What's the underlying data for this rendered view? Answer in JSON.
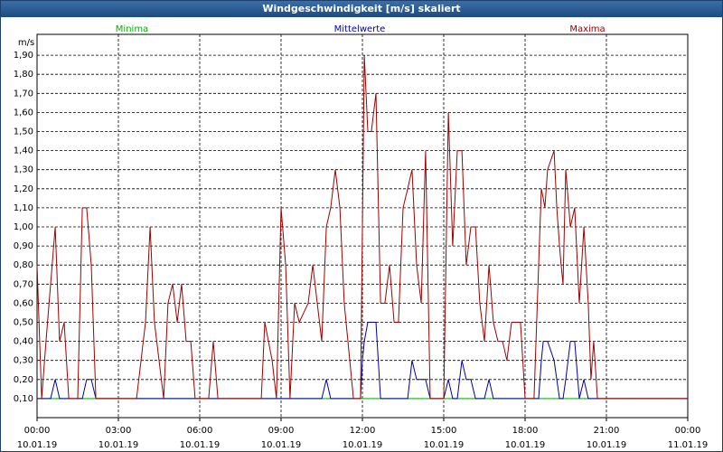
{
  "chart_data": {
    "type": "line",
    "title": "Windgeschwindigkeit [m/s] skaliert",
    "y_label": "m/s",
    "legend": "top",
    "grid": true,
    "ylim": [
      0,
      2
    ],
    "yticks": [
      {
        "value": 0.1,
        "label": "0,10"
      },
      {
        "value": 0.2,
        "label": "0,20"
      },
      {
        "value": 0.3,
        "label": "0,30"
      },
      {
        "value": 0.4,
        "label": "0,40"
      },
      {
        "value": 0.5,
        "label": "0,50"
      },
      {
        "value": 0.6,
        "label": "0,60"
      },
      {
        "value": 0.7,
        "label": "0,70"
      },
      {
        "value": 0.8,
        "label": "0,80"
      },
      {
        "value": 0.9,
        "label": "0,90"
      },
      {
        "value": 1.0,
        "label": "1,00"
      },
      {
        "value": 1.1,
        "label": "1,10"
      },
      {
        "value": 1.2,
        "label": "1,20"
      },
      {
        "value": 1.3,
        "label": "1,30"
      },
      {
        "value": 1.4,
        "label": "1,40"
      },
      {
        "value": 1.5,
        "label": "1,50"
      },
      {
        "value": 1.6,
        "label": "1,60"
      },
      {
        "value": 1.7,
        "label": "1,70"
      },
      {
        "value": 1.8,
        "label": "1,80"
      },
      {
        "value": 1.9,
        "label": "1,90"
      }
    ],
    "xlim": [
      0,
      24
    ],
    "xticks": [
      {
        "value": 0,
        "label": "00:00",
        "date": "10.01.19"
      },
      {
        "value": 3,
        "label": "03:00",
        "date": "10.01.19"
      },
      {
        "value": 6,
        "label": "06:00",
        "date": "10.01.19"
      },
      {
        "value": 9,
        "label": "09:00",
        "date": "10.01.19"
      },
      {
        "value": 12,
        "label": "12:00",
        "date": "10.01.19"
      },
      {
        "value": 15,
        "label": "15:00",
        "date": "10.01.19"
      },
      {
        "value": 18,
        "label": "18:00",
        "date": "10.01.19"
      },
      {
        "value": 21,
        "label": "21:00",
        "date": "10.01.19"
      },
      {
        "value": 24,
        "label": "00:00",
        "date": "11.01.19"
      }
    ],
    "x": [
      0,
      0.17,
      0.33,
      0.5,
      0.67,
      0.83,
      1,
      1.17,
      1.5,
      1.67,
      1.83,
      2,
      2.17,
      3.67,
      4,
      4.17,
      4.33,
      4.67,
      4.83,
      5,
      5.17,
      5.33,
      5.5,
      5.67,
      5.83,
      6.33,
      6.5,
      6.67,
      8.27,
      8.4,
      8.67,
      8.83,
      9,
      9.17,
      9.33,
      9.5,
      9.67,
      10,
      10.17,
      10.5,
      10.67,
      10.83,
      11,
      11.17,
      11.33,
      11.67,
      11.93,
      12,
      12.07,
      12.2,
      12.33,
      12.5,
      12.67,
      12.83,
      13,
      13.17,
      13.33,
      13.5,
      13.67,
      13.83,
      14,
      14.17,
      14.33,
      14.5,
      15,
      15.17,
      15.33,
      15.5,
      15.67,
      15.83,
      16,
      16.17,
      16.33,
      16.5,
      16.67,
      16.83,
      17,
      17.17,
      17.33,
      17.5,
      17.83,
      18,
      18.33,
      18.5,
      18.6,
      18.67,
      18.73,
      18.83,
      19.07,
      19.17,
      19.27,
      19.33,
      19.4,
      19.5,
      19.67,
      19.83,
      20,
      20.17,
      20.33,
      20.43,
      20.53,
      20.67,
      21,
      24
    ],
    "series": [
      {
        "name": "Minima",
        "color": "#00b000",
        "values": [
          0.1,
          0.1,
          0.1,
          0.1,
          0.1,
          0.1,
          0.1,
          0.1,
          0.1,
          0.1,
          0.1,
          0.1,
          0.1,
          0.1,
          0.1,
          0.1,
          0.1,
          0.1,
          0.1,
          0.1,
          0.1,
          0.1,
          0.1,
          0.1,
          0.1,
          0.1,
          0.1,
          0.1,
          0.1,
          0.1,
          0.1,
          0.1,
          0.1,
          0.1,
          0.1,
          0.1,
          0.1,
          0.1,
          0.1,
          0.1,
          0.1,
          0.1,
          0.1,
          0.1,
          0.1,
          0.1,
          0.1,
          0.1,
          0.1,
          0.1,
          0.1,
          0.1,
          0.1,
          0.1,
          0.1,
          0.1,
          0.1,
          0.1,
          0.1,
          0.1,
          0.1,
          0.1,
          0.1,
          0.1,
          0.1,
          0.1,
          0.1,
          0.1,
          0.1,
          0.1,
          0.1,
          0.1,
          0.1,
          0.1,
          0.1,
          0.1,
          0.1,
          0.1,
          0.1,
          0.1,
          0.1,
          0.1,
          0.1,
          0.1,
          0.1,
          0.1,
          0.1,
          0.1,
          0.1,
          0.1,
          0.1,
          0.1,
          0.1,
          0.1,
          0.1,
          0.1,
          0.1,
          0.1,
          0.1,
          0.1,
          0.1,
          0.1,
          0.1,
          0.1
        ]
      },
      {
        "name": "Mittelwerte",
        "color": "#0000a0",
        "values": [
          0.1,
          0.1,
          0.1,
          0.1,
          0.2,
          0.1,
          0.1,
          0.1,
          0.1,
          0.1,
          0.2,
          0.2,
          0.1,
          0.1,
          0.1,
          0.1,
          0.1,
          0.1,
          0.1,
          0.1,
          0.1,
          0.1,
          0.1,
          0.1,
          0.1,
          0.1,
          0.1,
          0.1,
          0.1,
          0.1,
          0.1,
          0.1,
          0.1,
          0.1,
          0.1,
          0.1,
          0.1,
          0.1,
          0.1,
          0.1,
          0.2,
          0.1,
          0.1,
          0.1,
          0.1,
          0.1,
          0.1,
          0.3,
          0.4,
          0.5,
          0.5,
          0.5,
          0.1,
          0.1,
          0.1,
          0.1,
          0.1,
          0.1,
          0.1,
          0.3,
          0.2,
          0.2,
          0.2,
          0.1,
          0.1,
          0.2,
          0.1,
          0.1,
          0.3,
          0.2,
          0.2,
          0.1,
          0.1,
          0.1,
          0.2,
          0.1,
          0.1,
          0.1,
          0.1,
          0.1,
          0.1,
          0.1,
          0.1,
          0.1,
          0.3,
          0.4,
          0.4,
          0.4,
          0.3,
          0.2,
          0.1,
          0.1,
          0.1,
          0.2,
          0.4,
          0.4,
          0.1,
          0.2,
          0.1,
          0.1,
          0.1,
          0.1,
          0.1,
          0.1
        ]
      },
      {
        "name": "Maxima",
        "color": "#a00000",
        "values": [
          0.8,
          0.1,
          0.4,
          0.7,
          1,
          0.4,
          0.5,
          0.1,
          0.1,
          1.1,
          1.1,
          0.8,
          0.1,
          0.1,
          0.5,
          1,
          0.5,
          0.1,
          0.6,
          0.7,
          0.5,
          0.7,
          0.4,
          0.4,
          0.1,
          0.1,
          0.4,
          0.1,
          0.1,
          0.5,
          0.3,
          0.1,
          1.1,
          0.8,
          0.1,
          0.6,
          0.5,
          0.6,
          0.8,
          0.4,
          1,
          1.1,
          1.3,
          1.1,
          0.6,
          0.1,
          0.1,
          1,
          1.9,
          1.5,
          1.5,
          1.7,
          0.6,
          0.6,
          0.8,
          0.5,
          0.5,
          1.1,
          1.2,
          1.3,
          0.8,
          0.6,
          1.4,
          0.1,
          0.1,
          1.6,
          0.9,
          1.4,
          1.4,
          0.8,
          1,
          1,
          0.6,
          0.4,
          0.8,
          0.5,
          0.4,
          0.4,
          0.3,
          0.5,
          0.5,
          0.1,
          0.1,
          0.8,
          1.2,
          1.15,
          1.1,
          1.3,
          1.4,
          1.1,
          0.9,
          0.8,
          0.7,
          1.3,
          1,
          1.1,
          0.6,
          1,
          0.6,
          0.2,
          0.4,
          0.1,
          0.1,
          0.1
        ]
      }
    ]
  }
}
